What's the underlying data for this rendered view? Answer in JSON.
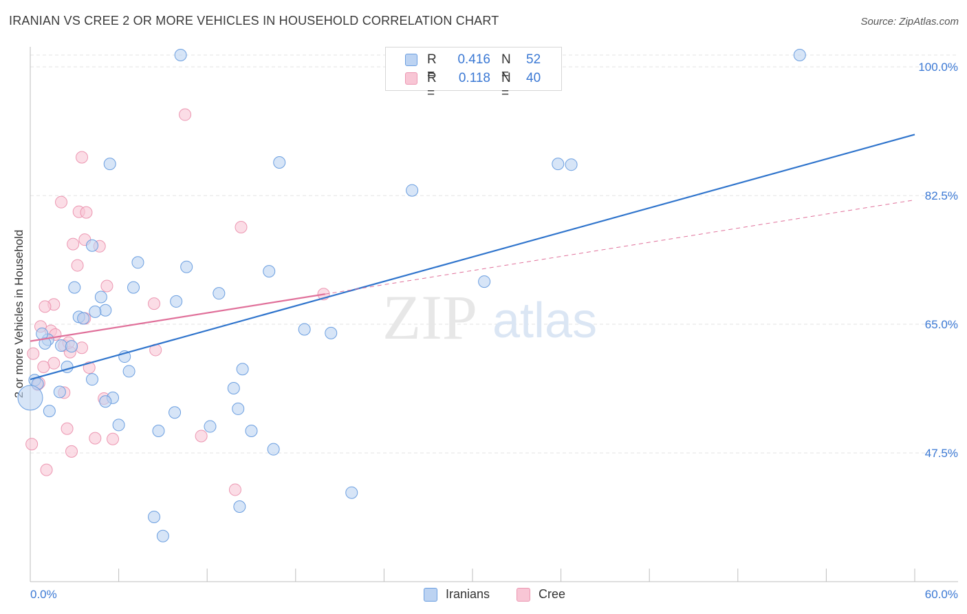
{
  "title": "IRANIAN VS CREE 2 OR MORE VEHICLES IN HOUSEHOLD CORRELATION CHART",
  "source": "Source: ZipAtlas.com",
  "watermark": {
    "zip": "ZIP",
    "atlas": "atlas"
  },
  "stats": {
    "iranians": {
      "r_label": "R =",
      "r_value": "0.416",
      "n_label": "N =",
      "n_value": "52"
    },
    "cree": {
      "r_label": "R =",
      "r_value": "0.118",
      "n_label": "N =",
      "n_value": "40"
    }
  },
  "legend": {
    "iranians": "Iranians",
    "cree": "Cree"
  },
  "colors": {
    "iranians_fill": "#bcd3f2",
    "iranians_stroke": "#6a9ee0",
    "iranians_line": "#2f74cc",
    "cree_fill": "#f8c6d5",
    "cree_stroke": "#ec96b1",
    "cree_line": "#e0709a",
    "tick_label": "#3a78d4",
    "grid": "#e3e3e3"
  },
  "chart_data": {
    "type": "scatter",
    "title": "IRANIAN VS CREE 2 OR MORE VEHICLES IN HOUSEHOLD CORRELATION CHART",
    "xlabel": "",
    "ylabel": "2 or more Vehicles in Household",
    "xlim": [
      0,
      60
    ],
    "ylim": [
      30,
      101.6
    ],
    "x_tick_labels": [
      "0.0%",
      "60.0%"
    ],
    "y_ticks": [
      47.5,
      65.0,
      82.5,
      100.0
    ],
    "y_tick_labels": [
      "47.5%",
      "65.0%",
      "82.5%",
      "100.0%"
    ],
    "series": [
      {
        "name": "Iranians",
        "r": 0.416,
        "n": 52,
        "trend": {
          "x": [
            0,
            60
          ],
          "y": [
            57.5,
            90.8
          ],
          "style": "solid"
        },
        "points": [
          {
            "x": 10.2,
            "y": 101.6
          },
          {
            "x": 52.2,
            "y": 101.6
          },
          {
            "x": 5.4,
            "y": 86.8
          },
          {
            "x": 16.9,
            "y": 87.0
          },
          {
            "x": 35.8,
            "y": 86.8
          },
          {
            "x": 36.7,
            "y": 86.7
          },
          {
            "x": 25.9,
            "y": 83.2
          },
          {
            "x": 4.2,
            "y": 75.7
          },
          {
            "x": 7.3,
            "y": 73.4
          },
          {
            "x": 10.6,
            "y": 72.8
          },
          {
            "x": 16.2,
            "y": 72.2
          },
          {
            "x": 30.8,
            "y": 70.8
          },
          {
            "x": 3.0,
            "y": 70.0
          },
          {
            "x": 7.0,
            "y": 70.0
          },
          {
            "x": 12.8,
            "y": 69.2
          },
          {
            "x": 4.8,
            "y": 68.7
          },
          {
            "x": 9.9,
            "y": 68.1
          },
          {
            "x": 5.1,
            "y": 66.9
          },
          {
            "x": 4.4,
            "y": 66.7
          },
          {
            "x": 3.3,
            "y": 66.0
          },
          {
            "x": 3.6,
            "y": 65.8
          },
          {
            "x": 18.6,
            "y": 64.3
          },
          {
            "x": 20.4,
            "y": 63.8
          },
          {
            "x": 1.2,
            "y": 62.9
          },
          {
            "x": 1.0,
            "y": 62.4
          },
          {
            "x": 2.1,
            "y": 62.1
          },
          {
            "x": 2.8,
            "y": 62.0
          },
          {
            "x": 6.4,
            "y": 60.6
          },
          {
            "x": 2.5,
            "y": 59.2
          },
          {
            "x": 6.7,
            "y": 58.6
          },
          {
            "x": 14.4,
            "y": 58.9
          },
          {
            "x": 0.3,
            "y": 57.4
          },
          {
            "x": 0.5,
            "y": 56.9
          },
          {
            "x": 4.2,
            "y": 57.5
          },
          {
            "x": 13.8,
            "y": 56.3
          },
          {
            "x": 2.0,
            "y": 55.8
          },
          {
            "x": 0.0,
            "y": 55.0
          },
          {
            "x": 5.6,
            "y": 55.0
          },
          {
            "x": 5.1,
            "y": 54.5
          },
          {
            "x": 14.1,
            "y": 53.5
          },
          {
            "x": 1.3,
            "y": 53.2
          },
          {
            "x": 9.8,
            "y": 53.0
          },
          {
            "x": 6.0,
            "y": 51.3
          },
          {
            "x": 12.2,
            "y": 51.1
          },
          {
            "x": 8.7,
            "y": 50.5
          },
          {
            "x": 15.0,
            "y": 50.5
          },
          {
            "x": 16.5,
            "y": 48.0
          },
          {
            "x": 21.8,
            "y": 42.1
          },
          {
            "x": 14.2,
            "y": 40.2
          },
          {
            "x": 8.4,
            "y": 38.8
          },
          {
            "x": 9.0,
            "y": 36.2
          },
          {
            "x": 0.8,
            "y": 63.7
          }
        ]
      },
      {
        "name": "Cree",
        "r": 0.118,
        "n": 40,
        "trend": {
          "x": [
            0,
            20
          ],
          "y": [
            62.7,
            69.1
          ],
          "style": "solid",
          "extension": {
            "x": [
              20,
              60
            ],
            "y": [
              69.1,
              81.9
            ],
            "style": "dashed"
          }
        },
        "points": [
          {
            "x": 10.5,
            "y": 93.5
          },
          {
            "x": 3.5,
            "y": 87.7
          },
          {
            "x": 2.1,
            "y": 81.6
          },
          {
            "x": 3.3,
            "y": 80.3
          },
          {
            "x": 3.8,
            "y": 80.2
          },
          {
            "x": 14.3,
            "y": 78.2
          },
          {
            "x": 3.7,
            "y": 76.5
          },
          {
            "x": 2.9,
            "y": 75.9
          },
          {
            "x": 4.7,
            "y": 75.6
          },
          {
            "x": 3.2,
            "y": 73.0
          },
          {
            "x": 5.2,
            "y": 70.2
          },
          {
            "x": 19.9,
            "y": 69.1
          },
          {
            "x": 8.4,
            "y": 67.8
          },
          {
            "x": 1.6,
            "y": 67.7
          },
          {
            "x": 1.0,
            "y": 67.4
          },
          {
            "x": 3.7,
            "y": 65.8
          },
          {
            "x": 0.7,
            "y": 64.7
          },
          {
            "x": 1.4,
            "y": 64.1
          },
          {
            "x": 2.3,
            "y": 62.1
          },
          {
            "x": 2.7,
            "y": 61.2
          },
          {
            "x": 0.2,
            "y": 61.0
          },
          {
            "x": 8.5,
            "y": 61.5
          },
          {
            "x": 1.6,
            "y": 59.7
          },
          {
            "x": 0.9,
            "y": 59.2
          },
          {
            "x": 4.0,
            "y": 59.1
          },
          {
            "x": 0.5,
            "y": 56.8
          },
          {
            "x": 2.3,
            "y": 55.7
          },
          {
            "x": 5.0,
            "y": 54.9
          },
          {
            "x": 2.5,
            "y": 50.8
          },
          {
            "x": 4.4,
            "y": 49.5
          },
          {
            "x": 5.6,
            "y": 49.4
          },
          {
            "x": 11.6,
            "y": 49.8
          },
          {
            "x": 0.1,
            "y": 48.7
          },
          {
            "x": 2.8,
            "y": 47.7
          },
          {
            "x": 1.1,
            "y": 45.2
          },
          {
            "x": 13.9,
            "y": 42.5
          },
          {
            "x": 1.7,
            "y": 63.6
          },
          {
            "x": 3.5,
            "y": 61.8
          },
          {
            "x": 2.6,
            "y": 62.5
          },
          {
            "x": 0.6,
            "y": 57.0
          }
        ]
      }
    ]
  }
}
